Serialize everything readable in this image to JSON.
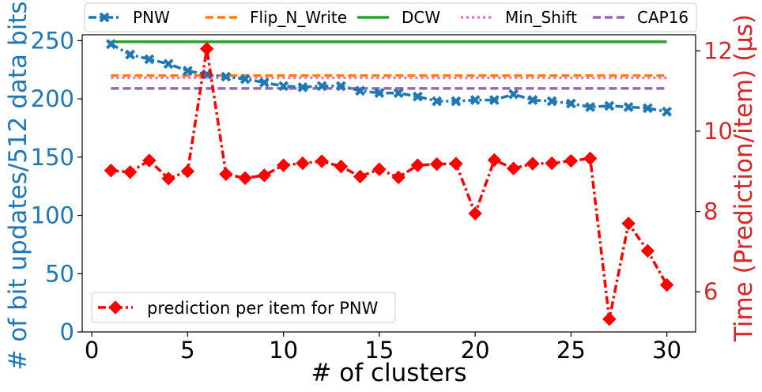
{
  "chart_data": {
    "type": "line",
    "xlabel": "# of clusters",
    "ylabel": "# of bit updates/512 data bits",
    "y2label": "Time (Prediction/item) (μs)",
    "xlim": [
      -0.5,
      31.5
    ],
    "ylim": [
      0,
      255
    ],
    "y2lim": [
      5.0,
      12.4
    ],
    "xticks": [
      0,
      5,
      10,
      15,
      20,
      25,
      30
    ],
    "yticks": [
      0,
      50,
      100,
      150,
      200,
      250
    ],
    "y2ticks": [
      6,
      8,
      10,
      12
    ],
    "grid": false,
    "legend_top": {
      "placement": "top, above plot",
      "entries": [
        "PNW",
        "Flip_N_Write",
        "DCW",
        "Min_Shift",
        "CAP16"
      ]
    },
    "legend_bottom": {
      "placement": "lower-left",
      "entries": [
        "prediction per item for PNW"
      ]
    },
    "colors": {
      "PNW": "#1f77b4",
      "Flip_N_Write": "#ff7f0e",
      "DCW": "#2ca02c",
      "Min_Shift": "#e377c2",
      "CAP16": "#9467bd",
      "prediction": "#ff0000",
      "left_axis": "#1f77b4",
      "right_axis": "#d62728"
    },
    "x": [
      1,
      2,
      3,
      4,
      5,
      6,
      7,
      8,
      9,
      10,
      11,
      12,
      13,
      14,
      15,
      16,
      17,
      18,
      19,
      20,
      21,
      22,
      23,
      24,
      25,
      26,
      27,
      28,
      29,
      30
    ],
    "series": [
      {
        "name": "PNW",
        "axis": "left",
        "style": "dashdot",
        "marker": "X",
        "values": [
          247,
          238,
          234,
          230,
          224,
          221,
          219,
          217,
          214,
          211,
          210,
          211,
          211,
          207,
          205,
          205,
          202,
          198,
          198,
          199,
          199,
          204,
          199,
          198,
          196,
          193,
          194,
          193,
          192,
          189
        ]
      },
      {
        "name": "Flip_N_Write",
        "axis": "left",
        "style": "dashed",
        "values": [
          220,
          220
        ],
        "x": [
          1,
          30
        ]
      },
      {
        "name": "DCW",
        "axis": "left",
        "style": "solid",
        "values": [
          249,
          249
        ],
        "x": [
          1,
          30
        ]
      },
      {
        "name": "Min_Shift",
        "axis": "left",
        "style": "dotted",
        "values": [
          218,
          218
        ],
        "x": [
          1,
          30
        ]
      },
      {
        "name": "CAP16",
        "axis": "left",
        "style": "dashed",
        "values": [
          209,
          209
        ],
        "x": [
          1,
          30
        ]
      },
      {
        "name": "prediction per item for PNW",
        "axis": "right",
        "style": "dashdot",
        "marker": "D",
        "values": [
          9.02,
          8.98,
          9.27,
          8.82,
          9.0,
          12.05,
          8.93,
          8.83,
          8.9,
          9.15,
          9.2,
          9.25,
          9.12,
          8.87,
          9.05,
          8.85,
          9.15,
          9.18,
          9.19,
          7.95,
          9.28,
          9.07,
          9.19,
          9.2,
          9.26,
          9.32,
          5.32,
          7.7,
          7.02,
          6.17
        ]
      }
    ]
  }
}
